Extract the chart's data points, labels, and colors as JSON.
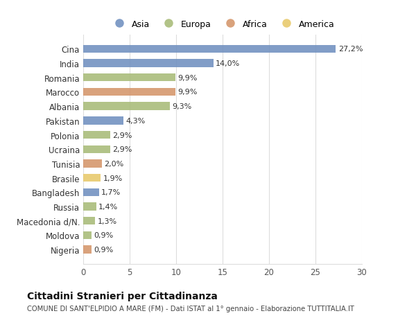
{
  "countries": [
    "Cina",
    "India",
    "Romania",
    "Marocco",
    "Albania",
    "Pakistan",
    "Polonia",
    "Ucraina",
    "Tunisia",
    "Brasile",
    "Bangladesh",
    "Russia",
    "Macedonia d/N.",
    "Moldova",
    "Nigeria"
  ],
  "values": [
    27.2,
    14.0,
    9.9,
    9.9,
    9.3,
    4.3,
    2.9,
    2.9,
    2.0,
    1.9,
    1.7,
    1.4,
    1.3,
    0.9,
    0.9
  ],
  "labels": [
    "27,2%",
    "14,0%",
    "9,9%",
    "9,9%",
    "9,3%",
    "4,3%",
    "2,9%",
    "2,9%",
    "2,0%",
    "1,9%",
    "1,7%",
    "1,4%",
    "1,3%",
    "0,9%",
    "0,9%"
  ],
  "continents": [
    "Asia",
    "Asia",
    "Europa",
    "Africa",
    "Europa",
    "Asia",
    "Europa",
    "Europa",
    "Africa",
    "America",
    "Asia",
    "Europa",
    "Europa",
    "Europa",
    "Africa"
  ],
  "colors": {
    "Asia": "#7090c0",
    "Europa": "#a8bb78",
    "Africa": "#d4956a",
    "America": "#e8c96a"
  },
  "legend_order": [
    "Asia",
    "Europa",
    "Africa",
    "America"
  ],
  "title": "Cittadini Stranieri per Cittadinanza",
  "subtitle": "COMUNE DI SANT'ELPIDIO A MARE (FM) - Dati ISTAT al 1° gennaio - Elaborazione TUTTITALIA.IT",
  "xlim": [
    0,
    30
  ],
  "xticks": [
    0,
    5,
    10,
    15,
    20,
    25,
    30
  ],
  "background_color": "#ffffff",
  "grid_color": "#dddddd"
}
